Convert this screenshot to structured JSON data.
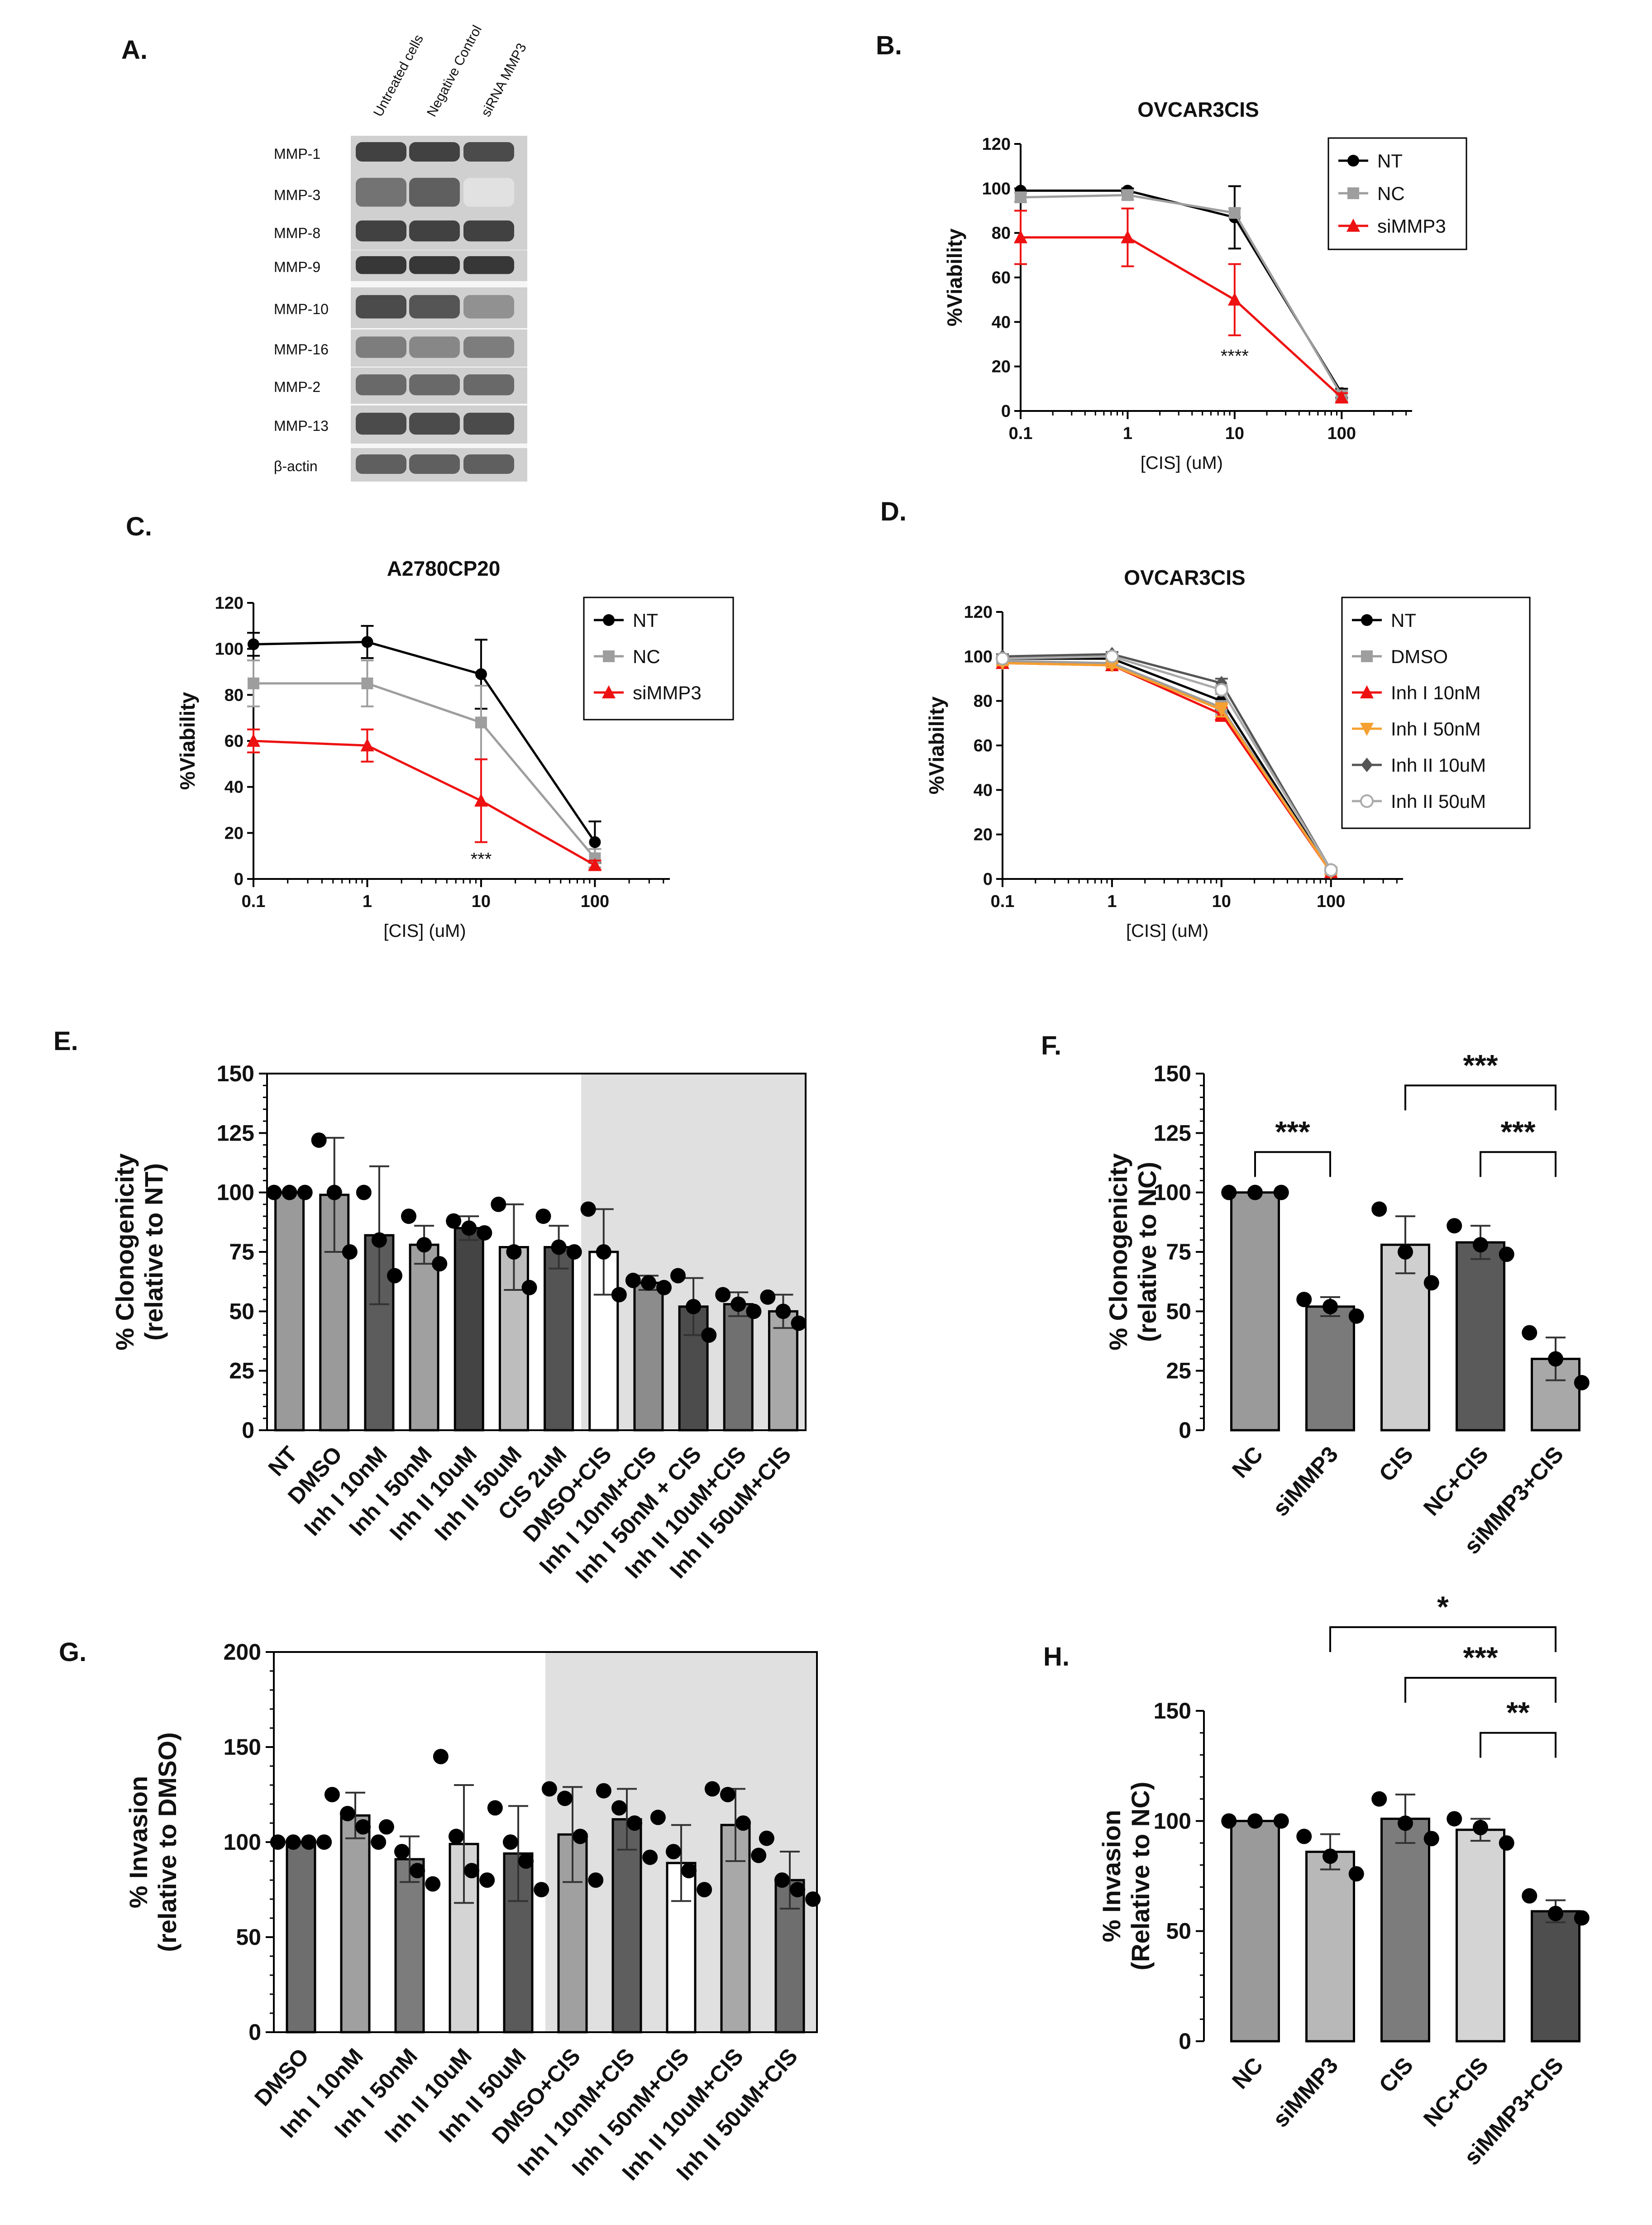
{
  "panel_letters": {
    "A": "A.",
    "B": "B.",
    "C": "C.",
    "D": "D.",
    "E": "E.",
    "F": "F.",
    "G": "G.",
    "H": "H."
  },
  "blot": {
    "columns": [
      "Untreated cells",
      "Negative Control",
      "siRNA MMP3"
    ],
    "rows": [
      {
        "label": "MMP-1",
        "intensity": [
          0.85,
          0.85,
          0.8
        ]
      },
      {
        "label": "MMP-3",
        "intensity": [
          0.6,
          0.7,
          0.05
        ]
      },
      {
        "label": "MMP-8",
        "intensity": [
          0.85,
          0.85,
          0.85
        ]
      },
      {
        "label": "MMP-9",
        "intensity": [
          0.9,
          0.9,
          0.9
        ]
      },
      {
        "label": "MMP-10",
        "intensity": [
          0.8,
          0.75,
          0.45
        ]
      },
      {
        "label": "MMP-16",
        "intensity": [
          0.55,
          0.5,
          0.55
        ]
      },
      {
        "label": "MMP-2",
        "intensity": [
          0.65,
          0.65,
          0.65
        ]
      },
      {
        "label": "MMP-13",
        "intensity": [
          0.8,
          0.8,
          0.8
        ]
      },
      {
        "label": "β-actin",
        "intensity": [
          0.7,
          0.7,
          0.7
        ]
      }
    ]
  },
  "colors": {
    "NT": "#000000",
    "NC": "#9e9e9e",
    "siMMP3": "#ee1111",
    "Inh_I_50nM": "#f5a030",
    "Inh_II_10uM": "#555555",
    "Inh_II_50uM": "#aaaaaa",
    "shade": "#e0e0e0"
  },
  "chart_data": [
    {
      "id": "B",
      "type": "line",
      "title": "OVCAR3CIS",
      "xlabel": "[CIS] (uM)",
      "ylabel": "%Viability",
      "xscale": "log",
      "x": [
        0.1,
        1,
        10,
        100
      ],
      "xticks": [
        "0.1",
        "1",
        "10",
        "100"
      ],
      "ylim": [
        0,
        120
      ],
      "yticks": [
        0,
        20,
        40,
        60,
        80,
        100,
        120
      ],
      "legend": "top-right",
      "annotations": [
        {
          "text": "****",
          "x": 10,
          "y": 22
        }
      ],
      "series": [
        {
          "name": "NT",
          "marker": "circle",
          "values": [
            99,
            99,
            87,
            8
          ],
          "err": [
            0,
            1,
            14,
            2
          ]
        },
        {
          "name": "NC",
          "marker": "square",
          "values": [
            96,
            97,
            89,
            7
          ],
          "err": [
            2,
            2,
            2,
            2
          ]
        },
        {
          "name": "siMMP3",
          "marker": "triangle",
          "values": [
            78,
            78,
            50,
            6
          ],
          "err": [
            12,
            13,
            16,
            2
          ]
        }
      ]
    },
    {
      "id": "C",
      "type": "line",
      "title": "A2780CP20",
      "xlabel": "[CIS] (uM)",
      "ylabel": "%Viability",
      "xscale": "log",
      "x": [
        0.1,
        1,
        10,
        100
      ],
      "xticks": [
        "0.1",
        "1",
        "10",
        "100"
      ],
      "ylim": [
        0,
        120
      ],
      "yticks": [
        0,
        20,
        40,
        60,
        80,
        100,
        120
      ],
      "legend": "top-right",
      "annotations": [
        {
          "text": "***",
          "x": 10,
          "y": 6
        }
      ],
      "series": [
        {
          "name": "NT",
          "marker": "circle",
          "values": [
            102,
            103,
            89,
            16
          ],
          "err": [
            5,
            7,
            15,
            9
          ]
        },
        {
          "name": "NC",
          "marker": "square",
          "values": [
            85,
            85,
            68,
            9
          ],
          "err": [
            10,
            10,
            16,
            4
          ]
        },
        {
          "name": "siMMP3",
          "marker": "triangle",
          "values": [
            60,
            58,
            34,
            6
          ],
          "err": [
            5,
            7,
            18,
            2
          ]
        }
      ]
    },
    {
      "id": "D",
      "type": "line",
      "title": "OVCAR3CIS",
      "xlabel": "[CIS] (uM)",
      "ylabel": "%Viability",
      "xscale": "log",
      "x": [
        0.1,
        1,
        10,
        100
      ],
      "xticks": [
        "0.1",
        "1",
        "10",
        "100"
      ],
      "ylim": [
        0,
        120
      ],
      "yticks": [
        0,
        20,
        40,
        60,
        80,
        100,
        120
      ],
      "legend": "top-right",
      "annotations": [],
      "series": [
        {
          "name": "NT",
          "marker": "circle",
          "values": [
            99,
            99,
            80,
            3
          ],
          "err": [
            1,
            1,
            4,
            1
          ]
        },
        {
          "name": "DMSO",
          "marker": "square",
          "values": [
            98,
            97,
            77,
            3
          ],
          "err": [
            1,
            1,
            3,
            1
          ]
        },
        {
          "name": "Inh I 10nM",
          "marker": "triangle",
          "values": [
            97,
            96,
            74,
            3
          ],
          "err": [
            1,
            1,
            3,
            1
          ]
        },
        {
          "name": "Inh I 50nM",
          "marker": "triangle-down",
          "values": [
            97,
            96,
            76,
            3
          ],
          "err": [
            1,
            1,
            3,
            1
          ]
        },
        {
          "name": "Inh II 10uM",
          "marker": "diamond",
          "values": [
            100,
            101,
            88,
            4
          ],
          "err": [
            1,
            1,
            2,
            1
          ]
        },
        {
          "name": "Inh II 50uM",
          "marker": "open-circle",
          "values": [
            99,
            100,
            85,
            4
          ],
          "err": [
            1,
            1,
            2,
            1
          ]
        }
      ]
    },
    {
      "id": "E",
      "type": "bar",
      "ylabel": "% Clonogenicity\n(relative to NT)",
      "ylim": [
        0,
        150
      ],
      "yticks": [
        0,
        25,
        50,
        75,
        100,
        125,
        150
      ],
      "shade_from_index": 7,
      "categories": [
        "NT",
        "DMSO",
        "Inh I 10nM",
        "Inh I 50nM",
        "Inh II 10uM",
        "Inh II 50uM",
        "CIS 2uM",
        "DMSO+CIS",
        "Inh I 10nM+CIS",
        "Inh I 50nM + CIS",
        "Inh II 10uM+CIS",
        "Inh II 50uM+CIS"
      ],
      "values": [
        100,
        99,
        82,
        78,
        85,
        77,
        77,
        75,
        62,
        52,
        53,
        50
      ],
      "err": [
        0,
        24,
        29,
        8,
        5,
        18,
        9,
        18,
        3,
        12,
        5,
        7
      ],
      "points": [
        [
          100,
          100,
          100
        ],
        [
          122,
          100,
          75
        ],
        [
          100,
          80,
          65
        ],
        [
          90,
          78,
          70
        ],
        [
          88,
          85,
          83
        ],
        [
          95,
          75,
          60
        ],
        [
          90,
          77,
          75
        ],
        [
          93,
          75,
          57
        ],
        [
          63,
          62,
          60
        ],
        [
          65,
          52,
          40
        ],
        [
          57,
          53,
          50
        ],
        [
          56,
          50,
          45
        ]
      ],
      "fills": [
        "#9a9a9a",
        "#9a9a9a",
        "#5c5c5c",
        "#a0a0a0",
        "#444444",
        "#bdbdbd",
        "#545454",
        "#ffffff",
        "#8c8c8c",
        "#4c4c4c",
        "#707070",
        "#a8a8a8"
      ]
    },
    {
      "id": "F",
      "type": "bar",
      "ylabel": "% Clonogenicity\n(relative to NC)",
      "ylim": [
        0,
        150
      ],
      "yticks": [
        0,
        25,
        50,
        75,
        100,
        125,
        150
      ],
      "categories": [
        "NC",
        "siMMP3",
        "CIS",
        "NC+CIS",
        "siMMP3+CIS"
      ],
      "values": [
        100,
        52,
        78,
        79,
        30
      ],
      "err": [
        0,
        4,
        12,
        7,
        9
      ],
      "points": [
        [
          100,
          100,
          100
        ],
        [
          55,
          52,
          48
        ],
        [
          93,
          75,
          62
        ],
        [
          86,
          78,
          74
        ],
        [
          41,
          30,
          20
        ]
      ],
      "fills": [
        "#9a9a9a",
        "#7a7a7a",
        "#cfcfcf",
        "#5a5a5a",
        "#a8a8a8"
      ],
      "brackets": [
        {
          "from": 0,
          "to": 1,
          "level": 117,
          "text": "***"
        },
        {
          "from": 2,
          "to": 4,
          "level": 145,
          "text": "***"
        },
        {
          "from": 3,
          "to": 4,
          "level": 117,
          "text": "***"
        }
      ]
    },
    {
      "id": "G",
      "type": "bar",
      "ylabel": "% Invasion\n(relative to DMSO)",
      "ylim": [
        0,
        200
      ],
      "yticks": [
        0,
        50,
        100,
        150,
        200
      ],
      "shade_from_index": 5,
      "categories": [
        "DMSO",
        "Inh I 10nM",
        "Inh I 50nM",
        "Inh II 10uM",
        "Inh II 50uM",
        "DMSO+CIS",
        "Inh I 10nM+CIS",
        "Inh I 50nM+CIS",
        "Inh II 10uM+CIS",
        "Inh II 50uM+CIS"
      ],
      "values": [
        100,
        114,
        91,
        99,
        94,
        104,
        112,
        89,
        109,
        80
      ],
      "err": [
        0,
        12,
        12,
        31,
        25,
        25,
        16,
        20,
        19,
        15
      ],
      "points": [
        [
          100,
          100,
          100,
          100
        ],
        [
          125,
          115,
          108,
          100
        ],
        [
          108,
          95,
          85,
          78
        ],
        [
          145,
          103,
          85,
          80
        ],
        [
          118,
          100,
          90,
          75
        ],
        [
          128,
          123,
          103,
          80
        ],
        [
          127,
          118,
          110,
          92
        ],
        [
          113,
          95,
          85,
          75
        ],
        [
          128,
          125,
          110,
          93
        ],
        [
          102,
          80,
          75,
          70
        ]
      ],
      "fills": [
        "#6e6e6e",
        "#a0a0a0",
        "#7c7c7c",
        "#d4d4d4",
        "#5a5a5a",
        "#a0a0a0",
        "#5e5e5e",
        "#ffffff",
        "#a8a8a8",
        "#6e6e6e"
      ]
    },
    {
      "id": "H",
      "type": "bar",
      "ylabel": "% Invasion\n(Relative to NC)",
      "ylim": [
        0,
        150
      ],
      "yticks": [
        0,
        50,
        100,
        150
      ],
      "categories": [
        "NC",
        "siMMP3",
        "CIS",
        "NC+CIS",
        "siMMP3+CIS"
      ],
      "values": [
        100,
        86,
        101,
        96,
        59
      ],
      "err": [
        0,
        8,
        11,
        5,
        5
      ],
      "points": [
        [
          100,
          100,
          100
        ],
        [
          93,
          84,
          76
        ],
        [
          110,
          99,
          92
        ],
        [
          101,
          97,
          90
        ],
        [
          66,
          58,
          56
        ]
      ],
      "fills": [
        "#9a9a9a",
        "#b8b8b8",
        "#7c7c7c",
        "#d4d4d4",
        "#4e4e4e"
      ],
      "brackets": [
        {
          "from": 1,
          "to": 4,
          "level": 188,
          "text": "*"
        },
        {
          "from": 2,
          "to": 4,
          "level": 165,
          "text": "***"
        },
        {
          "from": 3,
          "to": 4,
          "level": 140,
          "text": "**"
        }
      ]
    }
  ]
}
